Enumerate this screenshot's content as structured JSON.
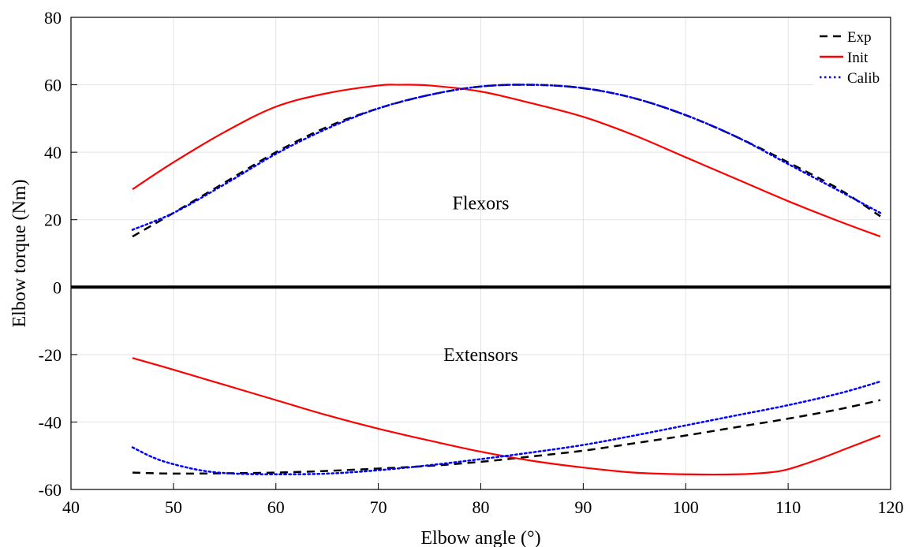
{
  "chart_data": {
    "type": "line",
    "xlabel": "Elbow angle (°)",
    "ylabel": "Elbow torque (Nm)",
    "xlim": [
      40,
      120
    ],
    "ylim": [
      -60,
      80
    ],
    "xticks": [
      40,
      50,
      60,
      70,
      80,
      90,
      100,
      110,
      120
    ],
    "yticks": [
      -60,
      -40,
      -20,
      0,
      20,
      40,
      60,
      80
    ],
    "grid": true,
    "legend_position": "top-right",
    "annotations": [
      {
        "text": "Flexors",
        "x": 80,
        "y": 25
      },
      {
        "text": "Extensors",
        "x": 80,
        "y": -20
      }
    ],
    "reference_line": {
      "y": 0
    },
    "series": [
      {
        "name": "Exp",
        "color": "#000000",
        "style": "dashed",
        "group": "flexors",
        "x": [
          46,
          50,
          55,
          60,
          65,
          70,
          75,
          80,
          85,
          90,
          95,
          100,
          105,
          110,
          115,
          119
        ],
        "y": [
          15,
          22,
          31,
          40,
          47.5,
          53,
          57,
          59.5,
          60,
          59,
          56,
          51,
          44.5,
          37,
          29,
          21
        ]
      },
      {
        "name": "Init",
        "color": "#ff0000",
        "style": "solid",
        "group": "flexors",
        "x": [
          46,
          50,
          55,
          60,
          65,
          70,
          72,
          75,
          80,
          85,
          90,
          95,
          100,
          105,
          110,
          115,
          119
        ],
        "y": [
          29,
          37,
          46,
          53.5,
          57.5,
          59.8,
          60,
          59.8,
          58,
          54.5,
          50.5,
          45,
          38.5,
          32,
          25.5,
          19.5,
          15
        ]
      },
      {
        "name": "Calib",
        "color": "#0000ff",
        "style": "dotted",
        "group": "flexors",
        "x": [
          46,
          50,
          55,
          60,
          65,
          70,
          75,
          80,
          85,
          90,
          95,
          100,
          105,
          110,
          115,
          119
        ],
        "y": [
          17,
          22,
          30.5,
          39.5,
          47,
          53,
          57,
          59.5,
          60,
          59,
          56,
          51,
          44.5,
          36.5,
          28.5,
          22
        ]
      },
      {
        "name": "Exp",
        "color": "#000000",
        "style": "dashed",
        "group": "extensors",
        "x": [
          46,
          50,
          55,
          60,
          65,
          70,
          75,
          80,
          85,
          90,
          95,
          100,
          105,
          110,
          115,
          119
        ],
        "y": [
          -55,
          -55.3,
          -55.2,
          -55,
          -54.5,
          -53.8,
          -53,
          -51.8,
          -50.2,
          -48.5,
          -46.3,
          -44,
          -41.5,
          -39,
          -36.2,
          -33.5
        ]
      },
      {
        "name": "Init",
        "color": "#ff0000",
        "style": "solid",
        "group": "extensors",
        "x": [
          46,
          50,
          55,
          60,
          65,
          70,
          75,
          80,
          85,
          90,
          95,
          100,
          105,
          108,
          110,
          113,
          116,
          119
        ],
        "y": [
          -21,
          -24.5,
          -29,
          -33.5,
          -38,
          -42,
          -45.5,
          -48.8,
          -51.5,
          -53.5,
          -55,
          -55.5,
          -55.5,
          -55,
          -54,
          -51,
          -47.5,
          -44
        ]
      },
      {
        "name": "Calib",
        "color": "#0000ff",
        "style": "dotted",
        "group": "extensors",
        "x": [
          46,
          48,
          50,
          53,
          56,
          60,
          65,
          70,
          75,
          80,
          85,
          90,
          95,
          100,
          105,
          110,
          115,
          119
        ],
        "y": [
          -47.5,
          -50.5,
          -52.5,
          -54.5,
          -55.3,
          -55.5,
          -55.3,
          -54.3,
          -52.8,
          -51,
          -49,
          -46.8,
          -44,
          -41,
          -38,
          -35,
          -31.5,
          -28
        ]
      }
    ],
    "legend": [
      {
        "label": "Exp",
        "color": "#000000",
        "style": "dashed"
      },
      {
        "label": "Init",
        "color": "#ff0000",
        "style": "solid"
      },
      {
        "label": "Calib",
        "color": "#0000ff",
        "style": "dotted"
      }
    ]
  }
}
